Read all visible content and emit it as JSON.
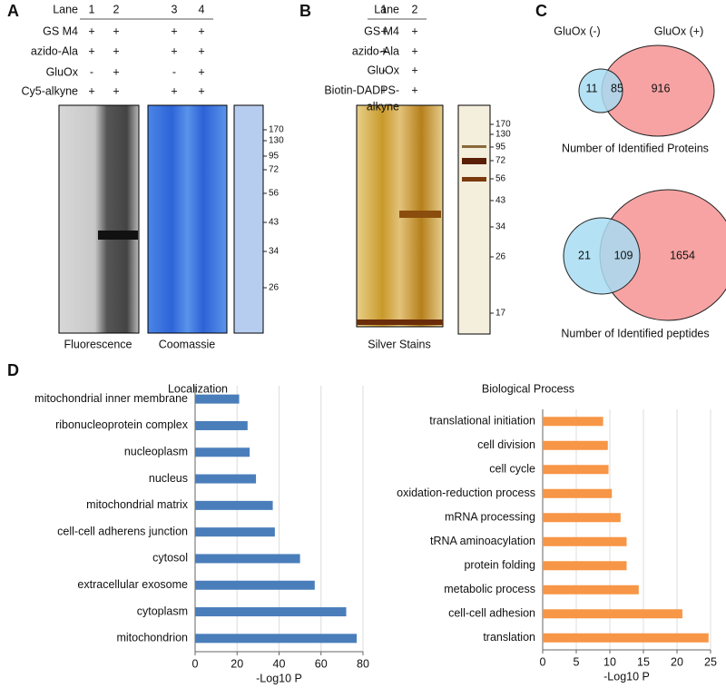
{
  "panel_a": {
    "label": "A",
    "rows": [
      {
        "label": "Lane",
        "cells": [
          "1",
          "2",
          "3",
          "4"
        ]
      },
      {
        "label": "GS M4",
        "cells": [
          "+",
          "+",
          "+",
          "+"
        ]
      },
      {
        "label": "azido-Ala",
        "cells": [
          "+",
          "+",
          "+",
          "+"
        ]
      },
      {
        "label": "GluOx",
        "cells": [
          "-",
          "+",
          "-",
          "+"
        ]
      },
      {
        "label": "Cy5-alkyne",
        "cells": [
          "+",
          "+",
          "+",
          "+"
        ]
      }
    ],
    "captions": [
      "Fluorescence",
      "Coomassie"
    ],
    "markers": [
      170,
      130,
      95,
      72,
      56,
      43,
      34,
      26
    ]
  },
  "panel_b": {
    "label": "B",
    "rows": [
      {
        "label": "Lane",
        "cells": [
          "1",
          "2"
        ]
      },
      {
        "label": "GS M4",
        "cells": [
          "+",
          "+"
        ]
      },
      {
        "label": "azido-Ala",
        "cells": [
          "+",
          "+"
        ]
      },
      {
        "label": "GluOx",
        "cells": [
          "-",
          "+"
        ]
      },
      {
        "label": [
          "Biotin-DADPS-",
          "alkyne"
        ],
        "cells": [
          "+",
          "+"
        ]
      }
    ],
    "captions": [
      "Silver Stains"
    ],
    "markers": [
      170,
      130,
      95,
      72,
      56,
      43,
      34,
      26,
      17
    ]
  },
  "panel_c": {
    "label": "C",
    "set_labels": [
      "GluOx (-)",
      "GluOx (+)"
    ],
    "venns": [
      {
        "only_minus": 11,
        "both": 85,
        "only_plus": 916,
        "caption": "Number of Identified Proteins"
      },
      {
        "only_minus": 21,
        "both": 109,
        "only_plus": 1654,
        "caption": "Number of Identified peptides"
      }
    ]
  },
  "panel_d": {
    "label": "D"
  },
  "chart_data": [
    {
      "type": "bar",
      "orientation": "horizontal",
      "title": "Localization",
      "categories": [
        "mitochondrial inner membrane",
        "ribonucleoprotein complex",
        "nucleoplasm",
        "nucleus",
        "mitochondrial matrix",
        "cell-cell adherens junction",
        "cytosol",
        "extracellular exosome",
        "cytoplasm",
        "mitochondrion"
      ],
      "values": [
        21,
        25,
        26,
        29,
        37,
        38,
        50,
        57,
        72,
        77
      ],
      "color": "#4a7ebb",
      "xlim": [
        0,
        80
      ],
      "xticks": [
        0,
        20,
        40,
        60,
        80
      ],
      "xlabel": "-Log10 P",
      "grid": true
    },
    {
      "type": "bar",
      "orientation": "horizontal",
      "title": "Biological Process",
      "categories": [
        "translational initiation",
        "cell division",
        "cell cycle",
        "oxidation-reduction process",
        "mRNA processing",
        "tRNA aminoacylation",
        "protein folding",
        "metabolic process",
        "cell-cell adhesion",
        "translation"
      ],
      "values": [
        9,
        9.7,
        9.8,
        10.3,
        11.6,
        12.5,
        12.5,
        14.3,
        20.8,
        24.7
      ],
      "color": "#f79646",
      "xlim": [
        0,
        25
      ],
      "xticks": [
        0,
        5,
        10,
        15,
        20,
        25
      ],
      "xlabel": "-Log10 P",
      "grid": true
    }
  ]
}
